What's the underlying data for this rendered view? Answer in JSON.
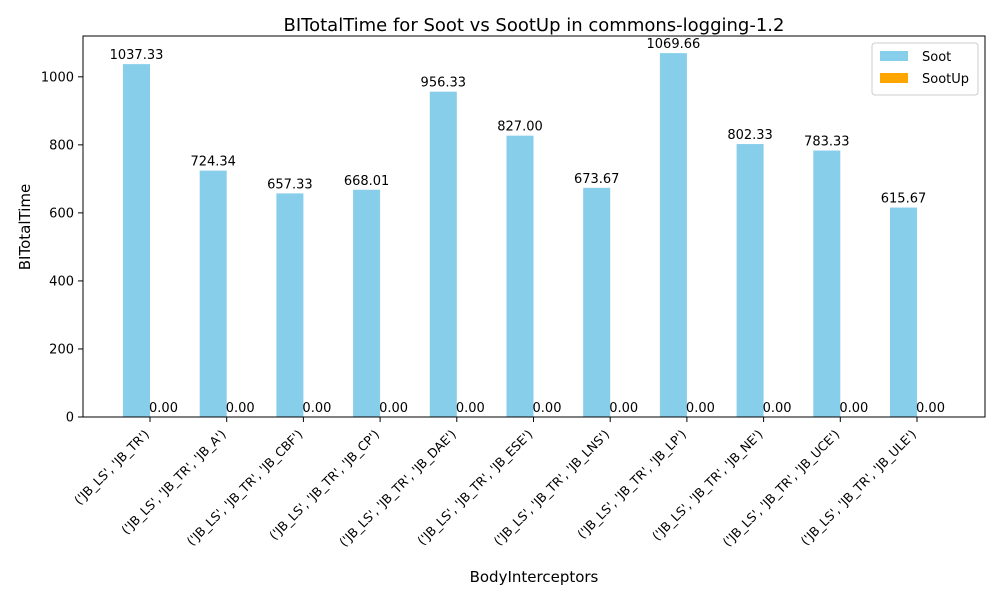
{
  "chart_data": {
    "type": "bar",
    "title": "BITotalTime for Soot vs SootUp in commons-logging-1.2",
    "xlabel": "BodyInterceptors",
    "ylabel": "BITotalTime",
    "categories": [
      "('JB_LS', 'JB_TR')",
      "('JB_LS', 'JB_TR', 'JB_A')",
      "('JB_LS', 'JB_TR', 'JB_CBF')",
      "('JB_LS', 'JB_TR', 'JB_CP')",
      "('JB_LS', 'JB_TR', 'JB_DAE')",
      "('JB_LS', 'JB_TR', 'JB_ESE')",
      "('JB_LS', 'JB_TR', 'JB_LNS')",
      "('JB_LS', 'JB_TR', 'JB_LP')",
      "('JB_LS', 'JB_TR', 'JB_NE')",
      "('JB_LS', 'JB_TR', 'JB_UCE')",
      "('JB_LS', 'JB_TR', 'JB_ULE')"
    ],
    "series": [
      {
        "name": "Soot",
        "color": "#87ceeb",
        "values": [
          1037.33,
          724.34,
          657.33,
          668.01,
          956.33,
          827.0,
          673.67,
          1069.66,
          802.33,
          783.33,
          615.67
        ],
        "labels": [
          "1037.33",
          "724.34",
          "657.33",
          "668.01",
          "956.33",
          "827.00",
          "673.67",
          "1069.66",
          "802.33",
          "783.33",
          "615.67"
        ]
      },
      {
        "name": "SootUp",
        "color": "#ffa500",
        "values": [
          0,
          0,
          0,
          0,
          0,
          0,
          0,
          0,
          0,
          0,
          0
        ],
        "labels": [
          "0.00",
          "0.00",
          "0.00",
          "0.00",
          "0.00",
          "0.00",
          "0.00",
          "0.00",
          "0.00",
          "0.00",
          "0.00"
        ]
      }
    ],
    "ylim": [
      0,
      1120
    ],
    "yticks": [
      0,
      200,
      400,
      600,
      800,
      1000
    ],
    "grid": false,
    "legend_position": "top-right"
  }
}
